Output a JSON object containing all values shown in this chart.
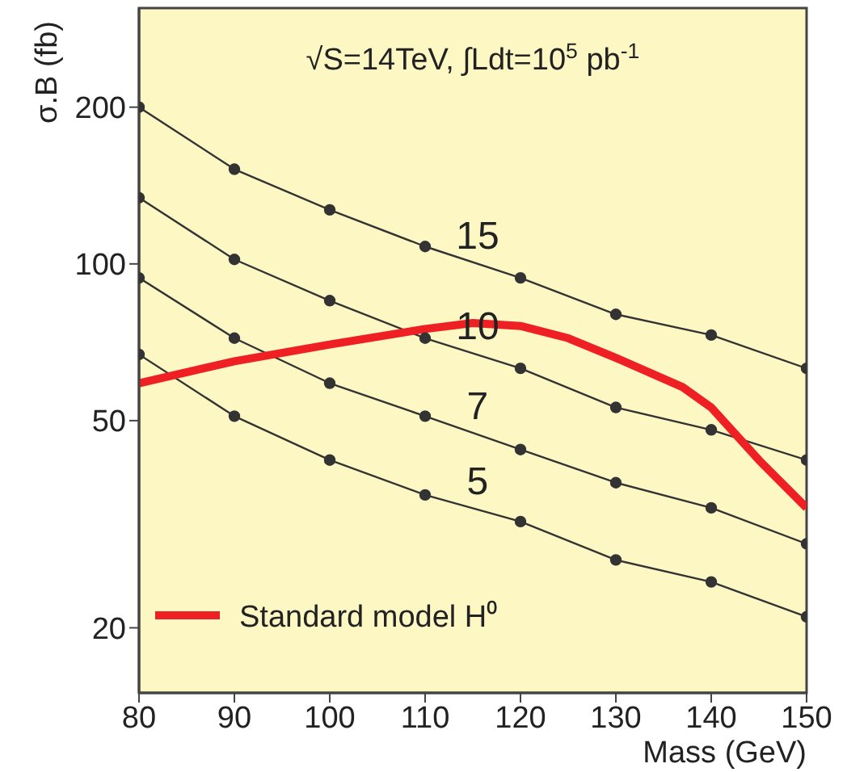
{
  "chart_data": {
    "type": "line",
    "title": "√S=14TeV, ∫Ldt=10$^{5}$ pb$^{-1}$",
    "xlabel": "Mass (GeV)",
    "ylabel": "σ.B (fb)",
    "log": "y",
    "xlim": [
      80,
      150
    ],
    "xticks": [
      80,
      90,
      100,
      110,
      120,
      130,
      140,
      150
    ],
    "ylim": [
      15,
      310
    ],
    "yticks": [
      20,
      50,
      100,
      200
    ],
    "legend": "bottom left",
    "series": [
      {
        "color": "#333333",
        "marker": "circle",
        "x": [
          80,
          90,
          100,
          110,
          120,
          130,
          140,
          150
        ],
        "values": [
          200,
          152,
          127,
          108,
          94,
          80,
          73,
          63
        ]
      },
      {
        "color": "#333333",
        "marker": "circle",
        "x": [
          80,
          90,
          100,
          110,
          120,
          130,
          140,
          150
        ],
        "values": [
          134,
          102,
          85,
          72,
          63,
          53,
          48,
          42
        ]
      },
      {
        "color": "#333333",
        "marker": "circle",
        "x": [
          80,
          90,
          100,
          110,
          120,
          130,
          140,
          150
        ],
        "values": [
          94,
          72,
          59,
          51,
          44,
          38,
          34,
          29
        ]
      },
      {
        "color": "#333333",
        "marker": "circle",
        "x": [
          80,
          90,
          100,
          110,
          120,
          130,
          140,
          150
        ],
        "values": [
          67,
          51,
          42,
          36,
          32,
          27,
          24.5,
          21
        ]
      },
      {
        "name": "Standard model H⁰",
        "color": "#ee2024",
        "marker": "none",
        "x": [
          80,
          90,
          100,
          110,
          115,
          120,
          125,
          130,
          137,
          140,
          145,
          150
        ],
        "values": [
          59,
          65,
          70,
          75,
          77,
          76,
          72,
          66,
          58,
          53,
          42,
          34
        ]
      }
    ],
    "annotations": [
      "15",
      "10",
      "7",
      "5"
    ]
  }
}
